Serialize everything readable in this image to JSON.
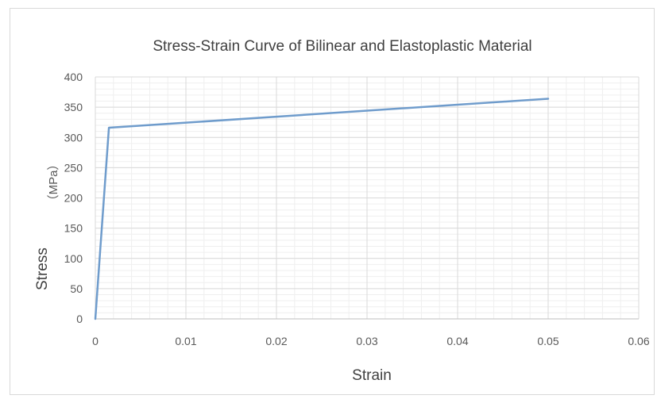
{
  "chart_data": {
    "type": "line",
    "title": "Stress-Strain Curve of Bilinear and Elastoplastic Material",
    "xlabel": "Strain",
    "ylabel": "Stress",
    "ylabel_unit": "（MPa）",
    "xlim": [
      0,
      0.06
    ],
    "ylim": [
      0,
      400
    ],
    "x_ticks": [
      "0",
      "0.01",
      "0.02",
      "0.03",
      "0.04",
      "0.05",
      "0.06"
    ],
    "y_ticks": [
      "0",
      "50",
      "100",
      "150",
      "200",
      "250",
      "300",
      "350",
      "400"
    ],
    "x_tick_values": [
      0,
      0.01,
      0.02,
      0.03,
      0.04,
      0.05,
      0.06
    ],
    "y_tick_values": [
      0,
      50,
      100,
      150,
      200,
      250,
      300,
      350,
      400
    ],
    "x_minor_step": 0.002,
    "y_minor_step": 10,
    "grid": true,
    "legend": "none",
    "line_color": "#6f9ccc",
    "series": [
      {
        "x": [
          0,
          0.0015,
          0.05
        ],
        "y": [
          0,
          316,
          364
        ]
      }
    ]
  }
}
